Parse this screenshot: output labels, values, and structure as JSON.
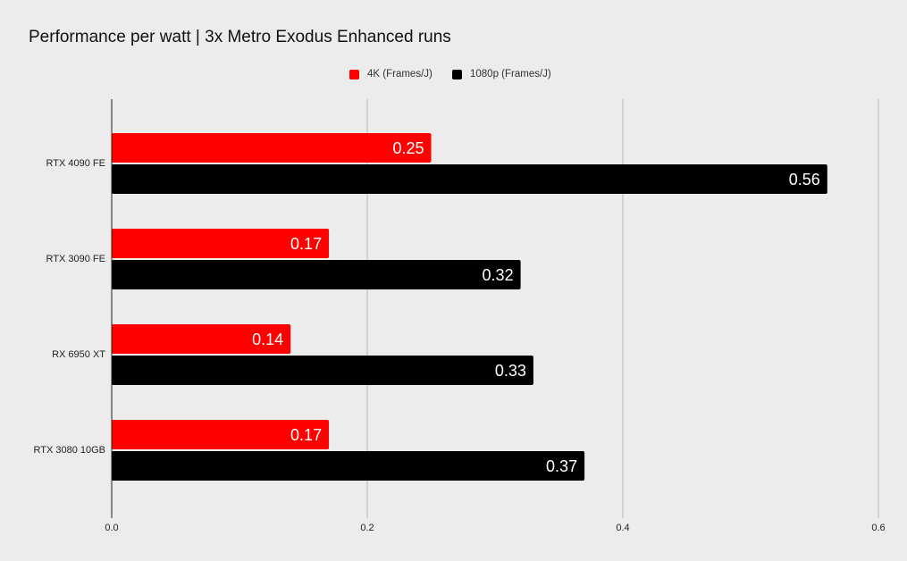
{
  "chart_data": {
    "type": "bar",
    "orientation": "horizontal",
    "title": "Performance per watt | 3x Metro Exodus Enhanced runs",
    "categories": [
      "RTX 4090 FE",
      "RTX 3090 FE",
      "RX 6950 XT",
      "RTX 3080 10GB"
    ],
    "series": [
      {
        "name": "4K (Frames/J)",
        "color": "#ff0000",
        "values": [
          0.25,
          0.17,
          0.14,
          0.17
        ],
        "labels": [
          "0.25",
          "0.17",
          "0.14",
          "0.17"
        ]
      },
      {
        "name": "1080p (Frames/J)",
        "color": "#000000",
        "values": [
          0.56,
          0.32,
          0.33,
          0.37
        ],
        "labels": [
          "0.56",
          "0.32",
          "0.33",
          "0.37"
        ]
      }
    ],
    "xlim": [
      0,
      0.6
    ],
    "xticks": [
      0,
      0.2,
      0.4,
      0.6
    ],
    "xtick_labels": [
      "0.0",
      "0.2",
      "0.4",
      "0.6"
    ],
    "xlabel": "",
    "ylabel": "",
    "grid": true,
    "legend_position": "top-center"
  }
}
